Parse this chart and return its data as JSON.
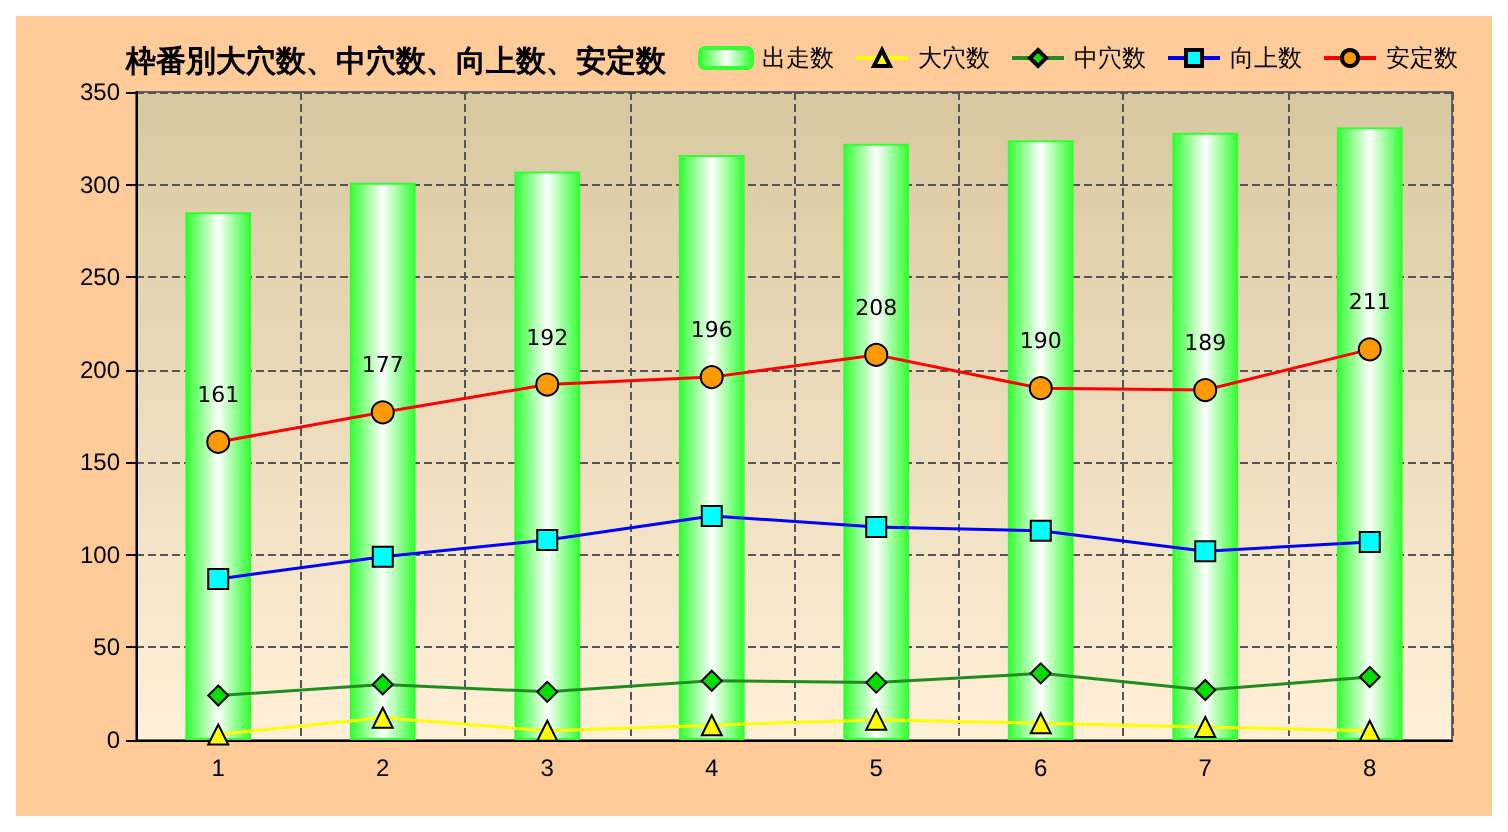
{
  "chart_data": {
    "type": "line",
    "title": "枠番別大穴数、中穴数、向上数、安定数",
    "categories": [
      "1",
      "2",
      "3",
      "4",
      "5",
      "6",
      "7",
      "8"
    ],
    "series": [
      {
        "name": "出走数",
        "type": "bar",
        "color": "#33ff33",
        "values": [
          285,
          301,
          307,
          316,
          322,
          324,
          328,
          331
        ]
      },
      {
        "name": "大穴数",
        "color": "#ffff00",
        "marker": "triangle",
        "values": [
          3,
          12,
          5,
          8,
          11,
          9,
          7,
          5
        ]
      },
      {
        "name": "中穴数",
        "color": "#228b22",
        "marker": "diamond",
        "values": [
          24,
          30,
          26,
          32,
          31,
          36,
          27,
          34
        ]
      },
      {
        "name": "向上数",
        "color": "#0000ff",
        "marker": "square",
        "values": [
          87,
          99,
          108,
          121,
          115,
          113,
          102,
          107
        ]
      },
      {
        "name": "安定数",
        "color": "#ff0000",
        "marker": "circle",
        "values": [
          161,
          177,
          192,
          196,
          208,
          190,
          189,
          211
        ],
        "value_labels": [
          "161",
          "177",
          "192",
          "196",
          "208",
          "190",
          "189",
          "211"
        ]
      }
    ],
    "ylim": [
      0,
      350
    ],
    "yticks": [
      0,
      50,
      100,
      150,
      200,
      250,
      300,
      350
    ],
    "grid": true,
    "legend": "top right"
  }
}
